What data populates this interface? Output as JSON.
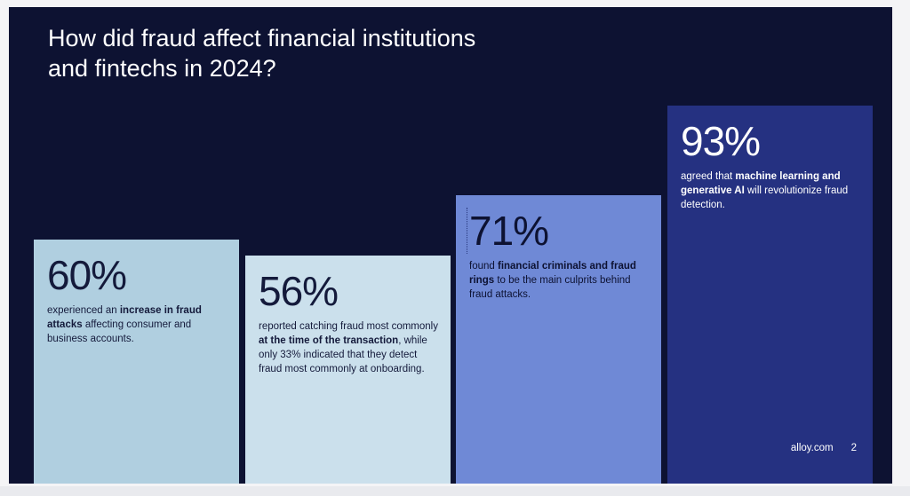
{
  "title": "How did fraud affect financial institutions and fintechs in 2024?",
  "chart_data": {
    "type": "bar",
    "title": "How did fraud affect financial institutions and fintechs in 2024?",
    "categories": [
      "60%",
      "56%",
      "71%",
      "93%"
    ],
    "values": [
      60,
      56,
      71,
      93
    ],
    "ylim": [
      0,
      100
    ],
    "cards": [
      {
        "value": 60,
        "label": "60%",
        "desc_parts": [
          {
            "t": "experienced an ",
            "b": false
          },
          {
            "t": "increase in fraud attacks",
            "b": true
          },
          {
            "t": " affecting consumer and business accounts.",
            "b": false
          }
        ],
        "color": "#b0cfe0"
      },
      {
        "value": 56,
        "label": "56%",
        "desc_parts": [
          {
            "t": "reported catching fraud most commonly ",
            "b": false
          },
          {
            "t": "at the time of the transaction",
            "b": true
          },
          {
            "t": ", while only 33% indicated that they detect fraud most commonly at onboarding.",
            "b": false
          }
        ],
        "color": "#cbe0ec"
      },
      {
        "value": 71,
        "label": "71%",
        "desc_parts": [
          {
            "t": "found ",
            "b": false
          },
          {
            "t": "financial criminals and fraud rings",
            "b": true
          },
          {
            "t": " to be the main culprits behind fraud attacks.",
            "b": false
          }
        ],
        "color": "#6f89d6"
      },
      {
        "value": 93,
        "label": "93%",
        "desc_parts": [
          {
            "t": "agreed that ",
            "b": false
          },
          {
            "t": "machine learning and generative AI",
            "b": true
          },
          {
            "t": " will revolutionize fraud detection.",
            "b": false
          }
        ],
        "color": "#253181"
      }
    ]
  },
  "footer": {
    "site": "alloy.com",
    "page": "2"
  },
  "colors": {
    "background": "#0d1232",
    "text_light": "#ffffff"
  }
}
